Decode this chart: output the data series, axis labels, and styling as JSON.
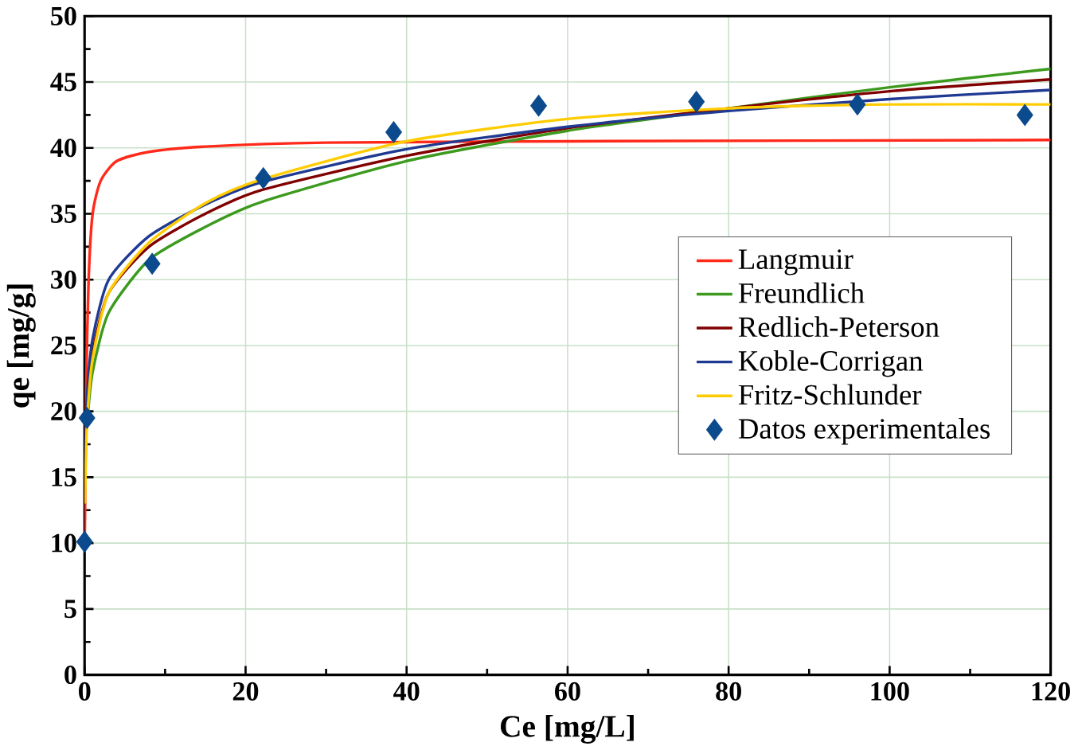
{
  "chart_data": {
    "type": "line",
    "xlabel": "Ce [mg/L]",
    "ylabel": "qe [mg/g]",
    "xlim": [
      0,
      120
    ],
    "ylim": [
      0,
      50
    ],
    "xticks": [
      0,
      20,
      40,
      60,
      80,
      100,
      120
    ],
    "yticks": [
      0,
      5,
      10,
      15,
      20,
      25,
      30,
      35,
      40,
      45,
      50
    ],
    "grid": true,
    "legend": "right",
    "series": [
      {
        "name": "Langmuir",
        "color": "#ff2a1a",
        "x": [
          0,
          0.05,
          0.2,
          0.5,
          1,
          2,
          4,
          8,
          15,
          30,
          60,
          120
        ],
        "values": [
          10,
          12,
          22,
          30,
          35,
          37.5,
          39,
          39.7,
          40.1,
          40.4,
          40.5,
          40.6
        ]
      },
      {
        "name": "Freundlich",
        "color": "#3c9a1e",
        "x": [
          0.3,
          1,
          3,
          8,
          15,
          22,
          40,
          60,
          80,
          100,
          120
        ],
        "values": [
          19,
          23,
          27.5,
          31.5,
          34,
          35.9,
          39,
          41.3,
          43,
          44.6,
          46
        ]
      },
      {
        "name": "Redlich-Peterson",
        "color": "#800000",
        "x": [
          0.05,
          0.3,
          1,
          3,
          8,
          15,
          22,
          40,
          60,
          80,
          100,
          120
        ],
        "values": [
          15,
          20,
          24.5,
          29,
          32.5,
          35,
          36.8,
          39.4,
          41.5,
          43,
          44.3,
          45.2
        ]
      },
      {
        "name": "Koble-Corrigan",
        "color": "#1f3a93",
        "x": [
          0.05,
          0.3,
          1,
          3,
          8,
          15,
          22,
          40,
          60,
          80,
          100,
          120
        ],
        "values": [
          15,
          21,
          25.5,
          30,
          33.3,
          35.7,
          37.4,
          39.9,
          41.6,
          42.8,
          43.7,
          44.4
        ]
      },
      {
        "name": "Fritz-Schlunder",
        "color": "#ffcc00",
        "x": [
          0.05,
          0.3,
          1,
          3,
          8,
          15,
          22,
          40,
          60,
          80,
          100,
          120
        ],
        "values": [
          13,
          19,
          24,
          29,
          32.8,
          35.8,
          37.6,
          40.5,
          42.2,
          43,
          43.3,
          43.3
        ]
      },
      {
        "name": "Datos experimentales",
        "type": "scatter",
        "marker": "diamond",
        "color": "#0b4a8c",
        "x": [
          0,
          0.3,
          8.4,
          22.2,
          38.4,
          56.4,
          76,
          96,
          116.8
        ],
        "values": [
          10.1,
          19.5,
          31.2,
          37.7,
          41.2,
          43.2,
          43.5,
          43.3,
          42.5
        ]
      }
    ]
  }
}
